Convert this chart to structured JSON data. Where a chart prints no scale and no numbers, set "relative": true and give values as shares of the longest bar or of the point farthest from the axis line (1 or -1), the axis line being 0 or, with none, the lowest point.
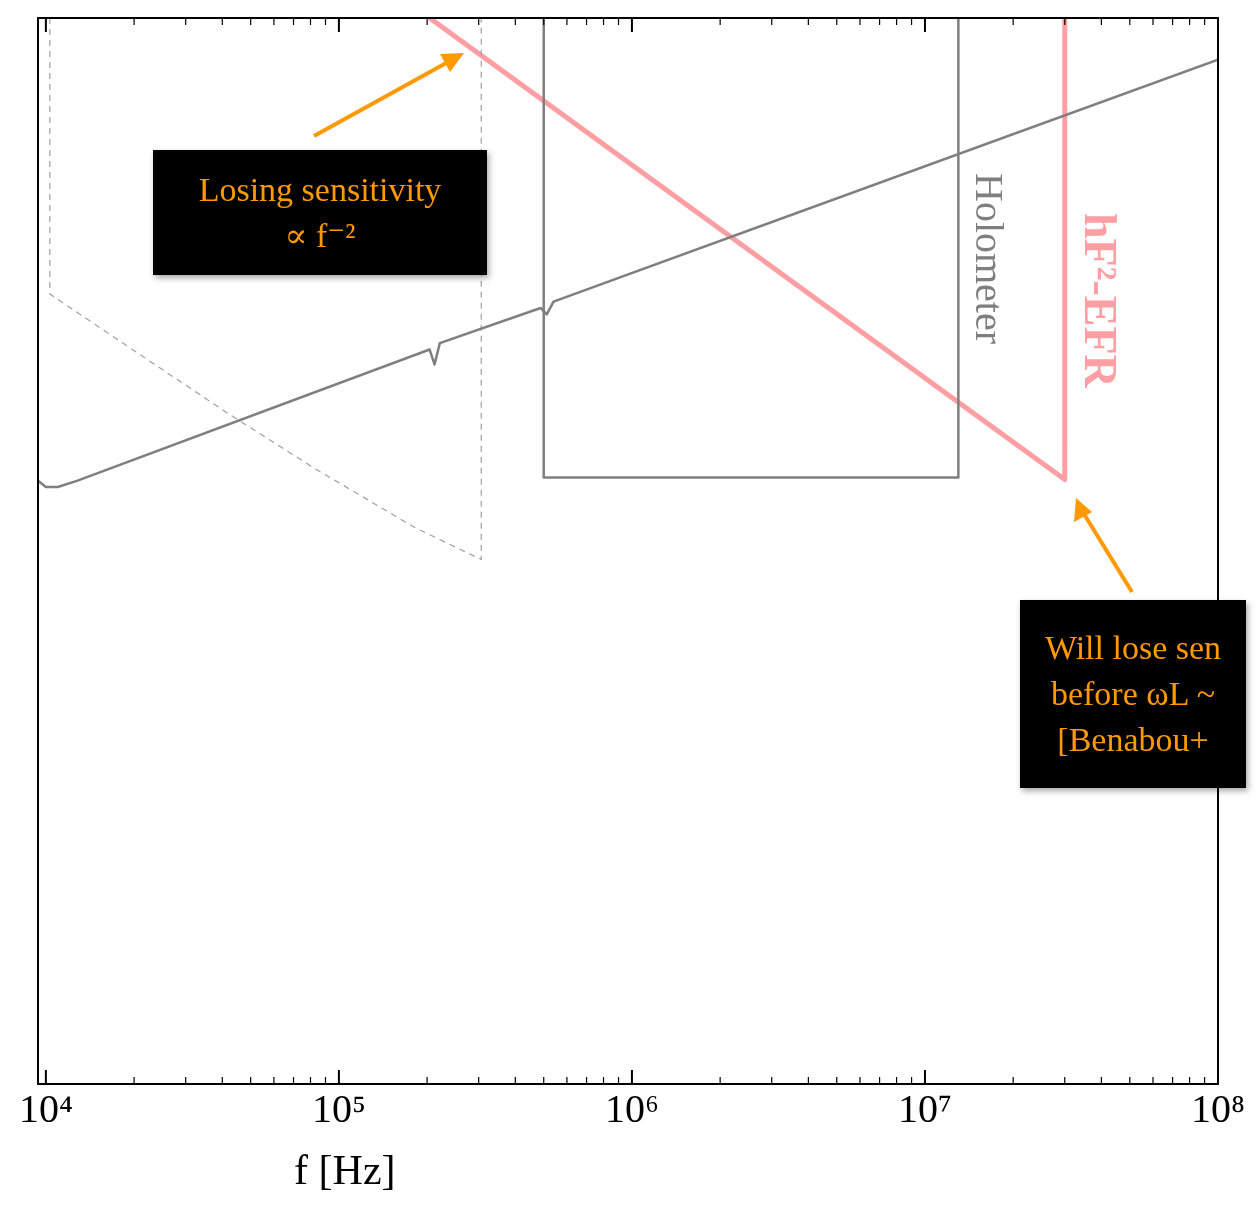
{
  "chart_data": {
    "type": "line",
    "relative": true,
    "log": "x",
    "xlabel": "f [Hz]",
    "xlim": [
      9400,
      100000000
    ],
    "xticks": [
      {
        "value": 10000,
        "label": "10⁴"
      },
      {
        "value": 100000,
        "label": "10⁵"
      },
      {
        "value": 1000000,
        "label": "10⁶"
      },
      {
        "value": 10000000,
        "label": "10⁷"
      },
      {
        "value": 100000000,
        "label": "10⁸"
      }
    ],
    "grid": false,
    "legend": false,
    "marker": "none",
    "series": [
      {
        "color": "#7f7f7f",
        "x": [
          9400,
          10000,
          10980,
          12830,
          204000,
          212000,
          221000,
          488000,
          512000,
          540000,
          100000000
        ],
        "values": [
          0.566,
          0.56,
          0.56,
          0.566,
          0.689,
          0.675,
          0.695,
          0.728,
          0.722,
          0.734,
          0.961
        ]
      },
      {
        "color": "#a0a0a0",
        "line_style": "dashed",
        "x": [
          10316,
          10316,
          20500,
          41300,
          83200,
          181500,
          306000,
          306000
        ],
        "values": [
          1,
          0.741,
          0.686,
          0.63,
          0.577,
          0.522,
          0.492,
          1
        ]
      },
      {
        "name": "Holometer",
        "color": "#7f7f7f",
        "x": [
          500000,
          500000,
          13000000,
          13000000
        ],
        "values": [
          1,
          0.569,
          0.569,
          1
        ]
      },
      {
        "name": "hF²-EFR",
        "color": "#ff9ea3",
        "x": [
          204000,
          30000000,
          30000000
        ],
        "values": [
          1,
          0.567,
          1
        ]
      }
    ],
    "annotations": [
      "Losing sensitivity\n∝ f⁻²",
      "Will lose sen\nbefore ωL ~\n[Benabou+"
    ]
  }
}
